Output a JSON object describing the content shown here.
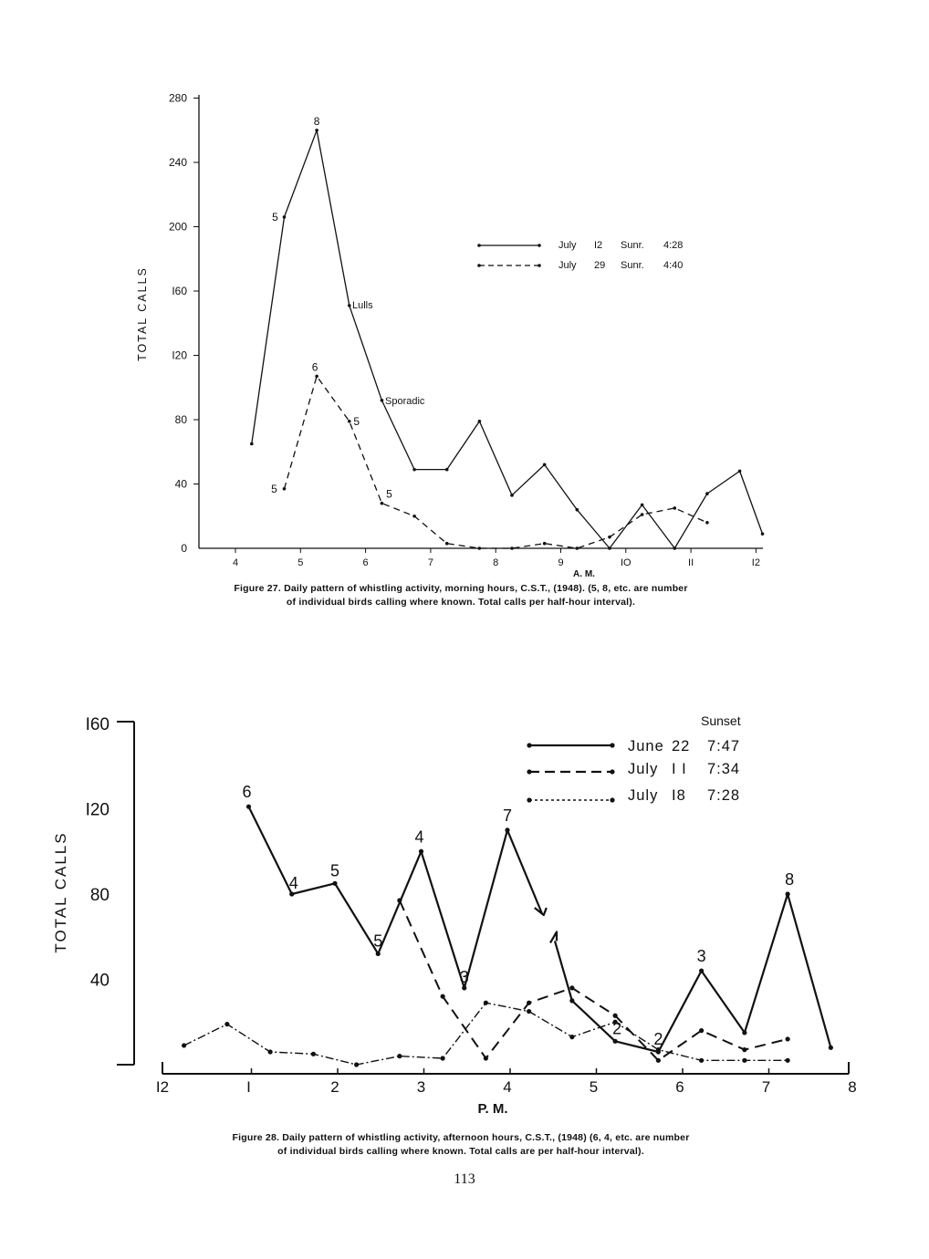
{
  "chart_data": [
    {
      "type": "line",
      "figure": "Figure 27",
      "caption_line1": "Figure 27. Daily pattern of whistling activity, morning hours, C.S.T., (1948). (5, 8, etc. are number",
      "caption_line2": "of individual birds calling where known. Total calls per half-hour interval).",
      "xlabel": "A. M.",
      "ylabel": "TOTAL CALLS",
      "xlim": [
        3.5,
        12.1
      ],
      "ylim": [
        0,
        280
      ],
      "x_ticks": [
        4,
        5,
        6,
        7,
        8,
        9,
        10,
        11,
        12
      ],
      "x_tick_labels": [
        "4",
        "5",
        "6",
        "7",
        "8",
        "9",
        "IO",
        "II",
        "I2"
      ],
      "y_ticks": [
        0,
        40,
        80,
        120,
        160,
        200,
        240,
        280
      ],
      "y_tick_labels": [
        "0",
        "40",
        "80",
        "I20",
        "I60",
        "200",
        "240",
        "280"
      ],
      "legend": [
        {
          "date": "July",
          "day": "I2",
          "sunrise_label": "Sunr.",
          "time": "4:28"
        },
        {
          "date": "July",
          "day": "29",
          "sunrise_label": "Sunr.",
          "time": "4:40"
        }
      ],
      "annotations": [
        {
          "text": "Lulls",
          "x": 5.8,
          "y": 151
        },
        {
          "text": "Sporadic",
          "x": 6.3,
          "y": 92
        }
      ],
      "series": [
        {
          "name": "July 12",
          "style": "solid",
          "x": [
            4.25,
            4.75,
            5.25,
            5.75,
            6.25,
            6.75,
            7.25,
            7.75,
            8.25,
            8.75,
            9.25,
            9.75,
            10.25,
            10.75,
            11.25,
            11.75,
            12.1
          ],
          "y": [
            65,
            206,
            260,
            151,
            92,
            49,
            49,
            79,
            33,
            52,
            24,
            0,
            27,
            0,
            34,
            48,
            9
          ],
          "labels": [
            {
              "x": 4.75,
              "text": "5"
            },
            {
              "x": 5.25,
              "text": "8"
            }
          ]
        },
        {
          "name": "July 29",
          "style": "dashed",
          "x": [
            4.75,
            5.25,
            5.75,
            6.25,
            6.75,
            7.25,
            7.75,
            8.25,
            8.75,
            9.25,
            9.75,
            10.25,
            10.75,
            11.25
          ],
          "y": [
            37,
            107,
            79,
            28,
            20,
            3,
            0,
            0,
            3,
            0,
            7,
            21,
            25,
            16
          ],
          "labels": [
            {
              "x": 4.75,
              "text": "5"
            },
            {
              "x": 5.25,
              "text": "6"
            },
            {
              "x": 5.75,
              "text": "5"
            },
            {
              "x": 6.25,
              "text": "5"
            }
          ]
        }
      ]
    },
    {
      "type": "line",
      "figure": "Figure 28",
      "caption_line1": "Figure 28. Daily pattern of whistling activity, afternoon hours, C.S.T., (1948) (6, 4, etc. are number",
      "caption_line2": "of individual birds calling where known. Total calls are per half-hour interval).",
      "xlabel": "P. M.",
      "ylabel": "TOTAL CALLS",
      "xlim": [
        0,
        8
      ],
      "ylim": [
        0,
        160
      ],
      "x_ticks": [
        0,
        1,
        2,
        3,
        4,
        5,
        6,
        7,
        8
      ],
      "x_tick_labels": [
        "I2",
        "I",
        "2",
        "3",
        "4",
        "5",
        "6",
        "7",
        "8"
      ],
      "y_ticks": [
        40,
        80,
        120,
        160
      ],
      "y_tick_labels": [
        "40",
        "80",
        "I20",
        "I60"
      ],
      "legend_title": "Sunset",
      "legend": [
        {
          "date": "June",
          "day": "22",
          "time": "7:47"
        },
        {
          "date": "July",
          "day": "I I",
          "time": "7:34"
        },
        {
          "date": "July",
          "day": "I8",
          "time": "7:28"
        }
      ],
      "series": [
        {
          "name": "June 22",
          "style": "solid",
          "x": [
            1.0,
            1.5,
            2.0,
            2.5,
            3.0,
            3.5,
            4.0,
            4.4,
            4.55,
            4.75,
            5.25,
            5.75,
            6.25,
            6.75,
            7.25,
            7.75
          ],
          "y": [
            121,
            80,
            85,
            52,
            100,
            36,
            110,
            71,
            58,
            30,
            11,
            6,
            44,
            15,
            80,
            8
          ],
          "break_after_index": 7,
          "labels": [
            {
              "x": 1.0,
              "text": "6"
            },
            {
              "x": 1.5,
              "text": "4"
            },
            {
              "x": 2.0,
              "text": "5"
            },
            {
              "x": 2.5,
              "text": "5"
            },
            {
              "x": 3.0,
              "text": "4"
            },
            {
              "x": 3.5,
              "text": "3"
            },
            {
              "x": 4.0,
              "text": "7"
            },
            {
              "x": 5.25,
              "text": "2"
            },
            {
              "x": 5.75,
              "text": "2"
            },
            {
              "x": 6.25,
              "text": "3"
            },
            {
              "x": 7.25,
              "text": "8"
            }
          ]
        },
        {
          "name": "July 11",
          "style": "dashed",
          "x": [
            2.75,
            3.25,
            3.75,
            4.25,
            4.75,
            5.25,
            5.75,
            6.25,
            6.75,
            7.25
          ],
          "y": [
            77,
            32,
            3,
            29,
            36,
            23,
            2,
            16,
            7,
            12
          ]
        },
        {
          "name": "July 18",
          "style": "dash-dot",
          "x": [
            0.25,
            0.75,
            1.25,
            1.75,
            2.25,
            2.75,
            3.25,
            3.75,
            4.25,
            4.75,
            5.25,
            5.75,
            6.25,
            6.75,
            7.25
          ],
          "y": [
            9,
            19,
            6,
            5,
            0,
            4,
            3,
            29,
            25,
            13,
            20,
            7,
            2,
            2,
            2
          ]
        }
      ]
    }
  ],
  "page_number": "113"
}
